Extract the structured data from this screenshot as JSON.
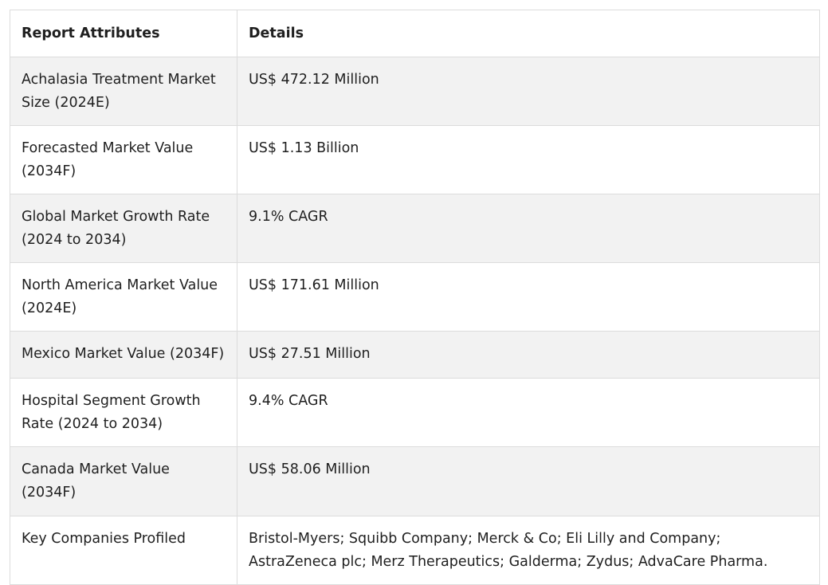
{
  "table": {
    "headers": [
      "Report Attributes",
      "Details"
    ],
    "rows": [
      {
        "attribute": "Achalasia Treatment Market Size (2024E)",
        "detail": "US$ 472.12 Million"
      },
      {
        "attribute": "Forecasted Market Value (2034F)",
        "detail": "US$ 1.13 Billion"
      },
      {
        "attribute": "Global Market Growth Rate (2024 to 2034)",
        "detail": "9.1% CAGR"
      },
      {
        "attribute": "North America Market Value (2024E)",
        "detail": "US$ 171.61 Million"
      },
      {
        "attribute": "Mexico Market Value (2034F)",
        "detail": "US$ 27.51 Million"
      },
      {
        "attribute": "Hospital Segment Growth Rate (2024 to 2034)",
        "detail": "9.4% CAGR"
      },
      {
        "attribute": "Canada Market Value (2034F)",
        "detail": "US$ 58.06 Million"
      },
      {
        "attribute": "Key Companies Profiled",
        "detail": "Bristol-Myers; Squibb Company; Merck & Co; Eli Lilly and Company; AstraZeneca plc; Merz Therapeutics; Galderma; Zydus; AdvaCare Pharma."
      }
    ]
  }
}
